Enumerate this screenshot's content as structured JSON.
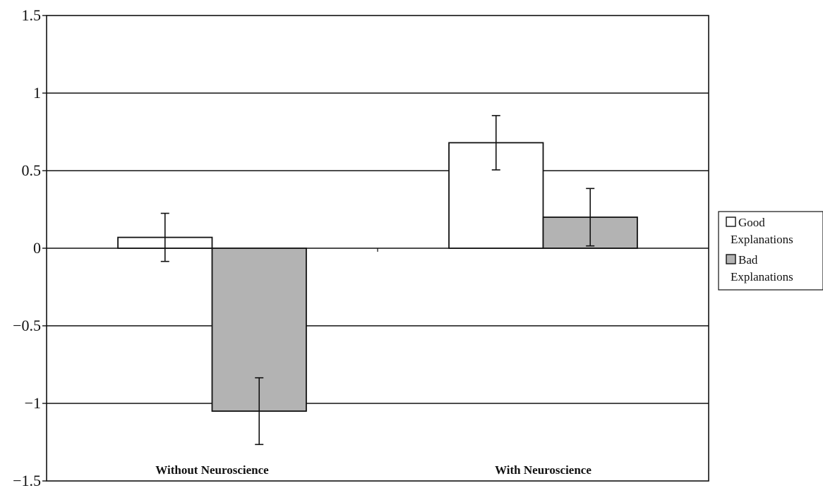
{
  "chart_data": {
    "type": "bar",
    "categories": [
      "Without Neuroscience",
      "With Neuroscience"
    ],
    "series": [
      {
        "name": "Good Explanations",
        "color": "#ffffff",
        "values": [
          0.07,
          0.68
        ],
        "error": [
          0.155,
          0.175
        ]
      },
      {
        "name": "Bad Explanations",
        "color": "#b3b3b3",
        "values": [
          -1.05,
          0.2
        ],
        "error": [
          0.215,
          0.185
        ]
      }
    ],
    "ylim": [
      -1.5,
      1.5
    ],
    "yticks": [
      -1.5,
      -1,
      -0.5,
      0,
      0.5,
      1,
      1.5
    ],
    "ytick_labels": [
      "−1.5",
      "−1",
      "−0.5",
      "0",
      "0.5",
      "1",
      "1.5"
    ],
    "grid": true,
    "legend_position": "right",
    "legend": [
      {
        "line1": "Good",
        "line2": "Explanations"
      },
      {
        "line1": "Bad",
        "line2": "Explanations"
      }
    ],
    "title": "",
    "xlabel": "",
    "ylabel": ""
  }
}
